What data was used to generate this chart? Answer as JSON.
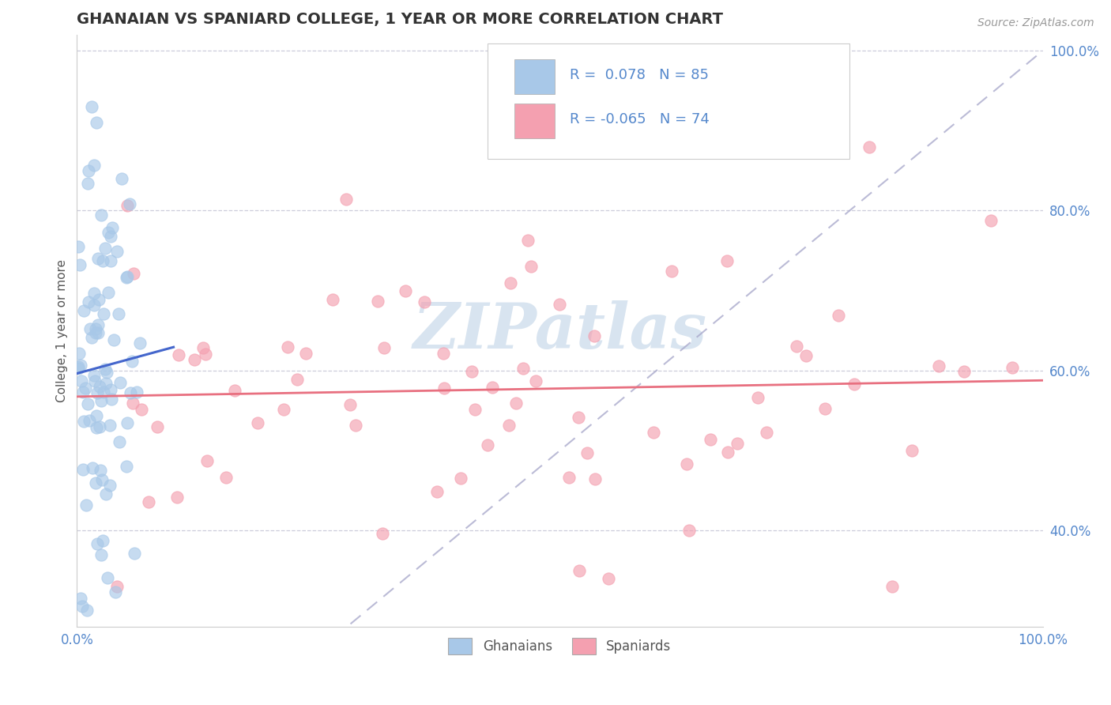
{
  "title": "GHANAIAN VS SPANIARD COLLEGE, 1 YEAR OR MORE CORRELATION CHART",
  "source": "Source: ZipAtlas.com",
  "ylabel": "College, 1 year or more",
  "legend_label1": "Ghanaians",
  "legend_label2": "Spaniards",
  "R1": 0.078,
  "N1": 85,
  "R2": -0.065,
  "N2": 74,
  "color_blue": "#a8c8e8",
  "color_pink": "#f4a0b0",
  "line_blue": "#4466cc",
  "line_pink": "#e87080",
  "line_dashed_color": "#aaaacc",
  "grid_color": "#c8c8d8",
  "background": "#ffffff",
  "tick_color": "#5588cc",
  "watermark_color": "#d8e4f0",
  "title_color": "#333333",
  "ylim_min": 0.28,
  "ylim_max": 1.02,
  "yticks": [
    0.4,
    0.6,
    0.8,
    1.0
  ],
  "ytick_labels": [
    "40.0%",
    "60.0%",
    "80.0%",
    "100.0%"
  ]
}
